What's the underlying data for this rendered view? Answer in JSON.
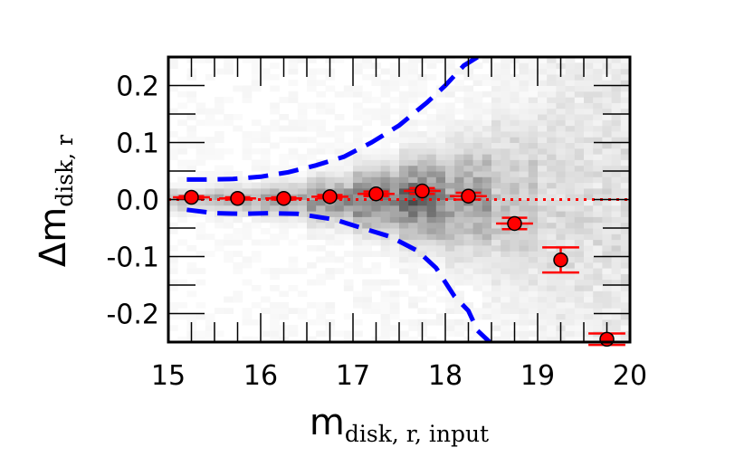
{
  "chart_data": {
    "type": "scatter",
    "xlabel": {
      "main": "m",
      "sub": "disk, r, input"
    },
    "ylabel": {
      "main": "Δm",
      "sub": "disk, r"
    },
    "xlim": [
      15,
      20
    ],
    "ylim": [
      -0.25,
      0.25
    ],
    "x_ticks": [
      15,
      16,
      17,
      18,
      19,
      20
    ],
    "x_tick_labels": [
      "15",
      "16",
      "17",
      "18",
      "19",
      "20"
    ],
    "y_ticks": [
      -0.2,
      -0.1,
      0.0,
      0.1,
      0.2
    ],
    "y_tick_labels": [
      "-0.2",
      "-0.1",
      "0.0",
      "0.1",
      "0.2"
    ],
    "grid": false,
    "reference_line": {
      "y": 0.0,
      "color": "#ff0000",
      "style": "dotted"
    },
    "points": {
      "color": "#ff0000",
      "x": [
        15.25,
        15.75,
        16.25,
        16.75,
        17.25,
        17.75,
        18.25,
        18.75,
        19.25,
        19.75
      ],
      "y": [
        0.004,
        0.002,
        0.002,
        0.005,
        0.01,
        0.015,
        0.006,
        -0.042,
        -0.106,
        -0.245
      ],
      "yerr": [
        0.002,
        0.002,
        0.002,
        0.003,
        0.004,
        0.005,
        0.006,
        0.01,
        0.022,
        0.01
      ],
      "xerr": [
        0.25,
        0.25,
        0.25,
        0.25,
        0.25,
        0.25,
        0.25,
        0.25,
        0.25,
        0.25
      ],
      "xerr_from": 8
    },
    "upper_envelope": {
      "color": "#0000ff",
      "style": "dashed",
      "x": [
        15.2,
        15.4,
        15.7,
        16.0,
        16.3,
        16.6,
        16.9,
        17.2,
        17.5,
        17.8,
        18.0,
        18.2,
        18.35
      ],
      "y": [
        0.035,
        0.035,
        0.036,
        0.04,
        0.048,
        0.06,
        0.075,
        0.1,
        0.13,
        0.17,
        0.2,
        0.235,
        0.25
      ]
    },
    "lower_envelope": {
      "color": "#0000ff",
      "style": "dashed",
      "x": [
        15.2,
        15.5,
        15.8,
        16.1,
        16.4,
        16.8,
        17.1,
        17.4,
        17.7,
        17.9,
        18.1,
        18.25,
        18.35,
        18.48
      ],
      "y": [
        -0.018,
        -0.024,
        -0.025,
        -0.024,
        -0.025,
        -0.035,
        -0.05,
        -0.065,
        -0.09,
        -0.12,
        -0.17,
        -0.195,
        -0.23,
        -0.25
      ]
    },
    "density_background": {
      "type": "heatmap",
      "colormap": "gray_r",
      "x_bin_width": 0.1,
      "y_bin_width": 0.01,
      "bands": [
        {
          "x": [
            15.0,
            15.5
          ],
          "half_width": 0.012,
          "level": 0.25
        },
        {
          "x": [
            15.5,
            16.0
          ],
          "half_width": 0.015,
          "level": 0.28
        },
        {
          "x": [
            16.0,
            16.5
          ],
          "half_width": 0.018,
          "level": 0.32
        },
        {
          "x": [
            16.5,
            17.0
          ],
          "half_width": 0.025,
          "level": 0.38
        },
        {
          "x": [
            17.0,
            17.5
          ],
          "half_width": 0.035,
          "level": 0.48
        },
        {
          "x": [
            17.5,
            18.0
          ],
          "half_width": 0.045,
          "level": 0.55
        },
        {
          "x": [
            18.0,
            18.5
          ],
          "half_width": 0.06,
          "level": 0.35
        },
        {
          "x": [
            18.5,
            19.0
          ],
          "half_width": 0.09,
          "level": 0.18
        },
        {
          "x": [
            19.0,
            19.5
          ],
          "half_width": 0.13,
          "level": 0.1
        },
        {
          "x": [
            19.5,
            20.0
          ],
          "half_width": 0.18,
          "level": 0.07
        }
      ]
    }
  }
}
